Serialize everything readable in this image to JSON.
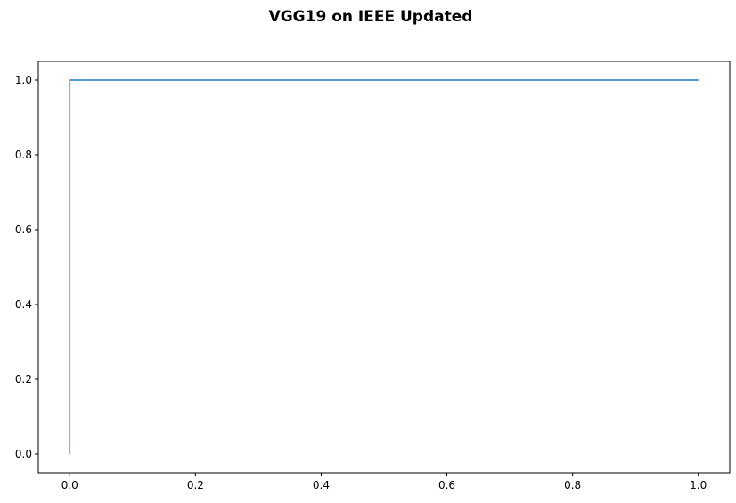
{
  "chart_data": {
    "type": "line",
    "title": "VGG19 on IEEE Updated",
    "xlabel": "",
    "ylabel": "",
    "xlim": [
      -0.05,
      1.05
    ],
    "ylim": [
      -0.05,
      1.05
    ],
    "xticks": [
      0.0,
      0.2,
      0.4,
      0.6,
      0.8,
      1.0
    ],
    "xtick_labels": [
      "0.0",
      "0.2",
      "0.4",
      "0.6",
      "0.8",
      "1.0"
    ],
    "yticks": [
      0.0,
      0.2,
      0.4,
      0.6,
      0.8,
      1.0
    ],
    "ytick_labels": [
      "0.0",
      "0.2",
      "0.4",
      "0.6",
      "0.8",
      "1.0"
    ],
    "grid": false,
    "legend": "none",
    "series": [
      {
        "color": "#1f77b4",
        "x": [
          0.0,
          0.0,
          1.0
        ],
        "y": [
          0.0,
          1.0,
          1.0
        ]
      }
    ]
  }
}
